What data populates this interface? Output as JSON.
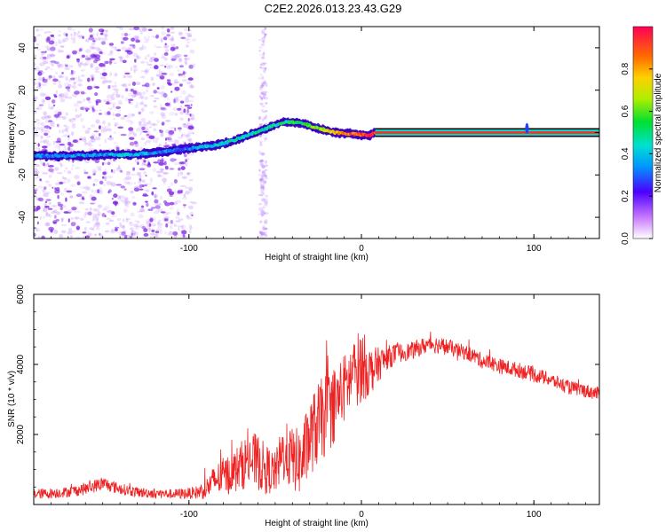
{
  "title": "C2E2.2026.013.23.43.G29",
  "colors": {
    "background": "#ffffff",
    "axis": "#000000",
    "snr_line": "#ee2222",
    "scatter_violet": "#8a2be2",
    "carrier_band": "#ff2255"
  },
  "colorbar": {
    "label": "Normalized spectral amplitude",
    "ticks": [
      "0.0",
      "0.2",
      "0.4",
      "0.6",
      "0.8"
    ],
    "range": [
      0,
      1
    ]
  },
  "chart_data": [
    {
      "type": "scatter",
      "name": "frequency-spectrogram",
      "title": "C2E2.2026.013.23.43.G29",
      "xlabel": "Height of straight line (km)",
      "ylabel": "Frequency (Hz)",
      "xlim": [
        -190,
        138
      ],
      "ylim": [
        -50,
        50
      ],
      "xticks": [
        -100,
        0,
        100
      ],
      "xtick_labels": [
        "-100",
        "0",
        "100"
      ],
      "yticks": [
        -40,
        -20,
        0,
        20,
        40
      ],
      "ytick_labels": [
        "-40",
        "-20",
        "0",
        "20",
        "40"
      ],
      "signal_track": {
        "x": [
          -190,
          -170,
          -150,
          -135,
          -120,
          -105,
          -95,
          -85,
          -75,
          -65,
          -55,
          -45,
          -35,
          -25,
          -15,
          -8,
          0,
          5,
          8,
          50,
          100,
          138
        ],
        "y": [
          -11,
          -11,
          -10.5,
          -10.5,
          -9.5,
          -8,
          -7,
          -6,
          -4,
          -1,
          2,
          5,
          4.5,
          2,
          0,
          -0.5,
          -1,
          -1.5,
          0,
          0,
          0,
          0
        ],
        "amplitude": [
          0.35,
          0.35,
          0.35,
          0.4,
          0.35,
          0.3,
          0.35,
          0.4,
          0.45,
          0.45,
          0.45,
          0.5,
          0.55,
          0.6,
          0.8,
          0.85,
          0.9,
          0.95,
          0.95,
          0.95,
          0.95,
          0.95
        ]
      },
      "steady_carrier": {
        "x_start": 8,
        "x_end": 138,
        "frequency": 0,
        "amplitude": 0.95
      },
      "noise_region": {
        "x_range": [
          -190,
          -97
        ],
        "y_range": [
          -50,
          50
        ],
        "amplitude": 0.1
      },
      "noise_column": {
        "x_center": -57,
        "y_range": [
          -50,
          50
        ],
        "amplitude": 0.1
      },
      "blip": {
        "x": 96,
        "y": 2
      }
    },
    {
      "type": "line",
      "name": "snr-profile",
      "xlabel": "Height of straight line (km)",
      "ylabel": "SNR (10 * v/v)",
      "xlim": [
        -190,
        138
      ],
      "ylim": [
        0,
        6000
      ],
      "xticks": [
        -100,
        0,
        100
      ],
      "xtick_labels": [
        "-100",
        "0",
        "100"
      ],
      "yticks": [
        2000,
        4000,
        6000
      ],
      "ytick_labels": [
        "2000",
        "4000",
        "6000"
      ],
      "series": [
        {
          "name": "SNR",
          "x": [
            -190,
            -180,
            -170,
            -160,
            -150,
            -140,
            -130,
            -120,
            -110,
            -100,
            -95,
            -90,
            -85,
            -80,
            -75,
            -70,
            -65,
            -60,
            -55,
            -50,
            -45,
            -40,
            -35,
            -30,
            -25,
            -20,
            -15,
            -10,
            -5,
            0,
            5,
            10,
            15,
            20,
            25,
            30,
            35,
            40,
            45,
            50,
            55,
            60,
            65,
            70,
            75,
            80,
            85,
            90,
            95,
            100,
            105,
            110,
            115,
            120,
            125,
            130,
            138
          ],
          "y": [
            300,
            320,
            360,
            450,
            600,
            450,
            350,
            320,
            300,
            320,
            350,
            450,
            700,
            800,
            900,
            1100,
            1300,
            1200,
            1000,
            900,
            1500,
            1300,
            1200,
            1900,
            2300,
            2600,
            2900,
            3300,
            3700,
            4000,
            3800,
            4000,
            4200,
            4300,
            4350,
            4400,
            4500,
            4600,
            4550,
            4500,
            4400,
            4350,
            4250,
            4100,
            4050,
            3950,
            3900,
            3850,
            3800,
            3700,
            3650,
            3550,
            3450,
            3350,
            3300,
            3250,
            3150
          ],
          "spread": [
            150,
            150,
            150,
            180,
            200,
            160,
            150,
            140,
            140,
            160,
            200,
            300,
            450,
            550,
            600,
            700,
            800,
            800,
            700,
            600,
            900,
            900,
            1000,
            1100,
            1200,
            1200,
            1100,
            1000,
            1000,
            1100,
            700,
            500,
            350,
            300,
            250,
            250,
            250,
            250,
            250,
            230,
            220,
            220,
            220,
            220,
            220,
            220,
            220,
            220,
            220,
            220,
            200,
            200,
            200,
            200,
            200,
            200,
            200
          ]
        }
      ]
    }
  ]
}
